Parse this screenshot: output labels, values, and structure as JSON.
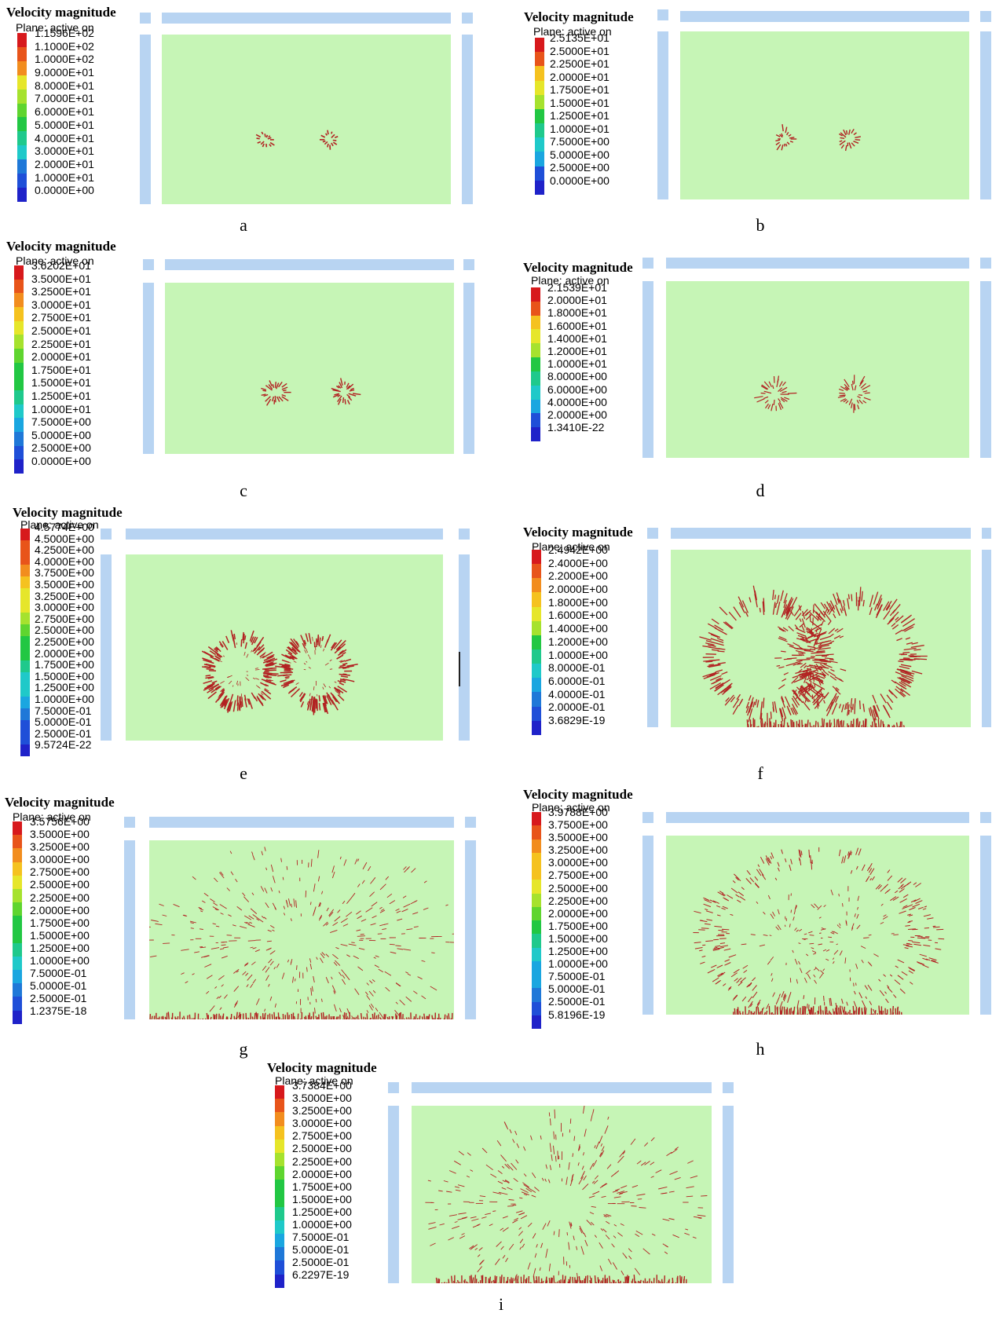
{
  "colors": {
    "colormap": [
      "#d7191c",
      "#e8541a",
      "#f28d1e",
      "#f5c21f",
      "#e6e62a",
      "#a6e22e",
      "#5fd52f",
      "#22c743",
      "#1fc98c",
      "#1fc9c9",
      "#1aa6e0",
      "#1f78d8",
      "#1f4fd8",
      "#1f22c9"
    ],
    "plate": "#b8d4f2",
    "field": "#c6f5b6",
    "vector": "#b22222"
  },
  "panels": [
    {
      "id": "a",
      "title": "Velocity magnitude",
      "subtitle": "Plane: active on",
      "letter": "a",
      "ticks": [
        "1.1596E+02",
        "1.1000E+02",
        "1.0000E+02",
        "9.0000E+01",
        "8.0000E+01",
        "7.0000E+01",
        "6.0000E+01",
        "5.0000E+01",
        "4.0000E+01",
        "3.0000E+01",
        "2.0000E+01",
        "1.0000E+01",
        "0.0000E+00"
      ]
    },
    {
      "id": "b",
      "title": "Velocity magnitude",
      "subtitle": "Plane: active on",
      "letter": "b",
      "ticks": [
        "2.5135E+01",
        "2.5000E+01",
        "2.2500E+01",
        "2.0000E+01",
        "1.7500E+01",
        "1.5000E+01",
        "1.2500E+01",
        "1.0000E+01",
        "7.5000E+00",
        "5.0000E+00",
        "2.5000E+00",
        "0.0000E+00"
      ]
    },
    {
      "id": "c",
      "title": "Velocity magnitude",
      "subtitle": "Plane: active on",
      "letter": "c",
      "ticks": [
        "3.6202E+01",
        "3.5000E+01",
        "3.2500E+01",
        "3.0000E+01",
        "2.7500E+01",
        "2.5000E+01",
        "2.2500E+01",
        "2.0000E+01",
        "1.7500E+01",
        "1.5000E+01",
        "1.2500E+01",
        "1.0000E+01",
        "7.5000E+00",
        "5.0000E+00",
        "2.5000E+00",
        "0.0000E+00"
      ]
    },
    {
      "id": "d",
      "title": "Velocity magnitude",
      "subtitle": "Plane: active on",
      "letter": "d",
      "ticks": [
        "2.1539E+01",
        "2.0000E+01",
        "1.8000E+01",
        "1.6000E+01",
        "1.4000E+01",
        "1.2000E+01",
        "1.0000E+01",
        "8.0000E+00",
        "6.0000E+00",
        "4.0000E+00",
        "2.0000E+00",
        "1.3410E-22"
      ]
    },
    {
      "id": "e",
      "title": "Velocity magnitude",
      "subtitle": "Plane: active on",
      "letter": "e",
      "ticks": [
        "4.5774E+00",
        "4.5000E+00",
        "4.2500E+00",
        "4.0000E+00",
        "3.7500E+00",
        "3.5000E+00",
        "3.2500E+00",
        "3.0000E+00",
        "2.7500E+00",
        "2.5000E+00",
        "2.2500E+00",
        "2.0000E+00",
        "1.7500E+00",
        "1.5000E+00",
        "1.2500E+00",
        "1.0000E+00",
        "7.5000E-01",
        "5.0000E-01",
        "2.5000E-01",
        "9.5724E-22"
      ]
    },
    {
      "id": "f",
      "title": "Velocity magnitude",
      "subtitle": "Plane: active on",
      "letter": "f",
      "ticks": [
        "2.4942E+00",
        "2.4000E+00",
        "2.2000E+00",
        "2.0000E+00",
        "1.8000E+00",
        "1.6000E+00",
        "1.4000E+00",
        "1.2000E+00",
        "1.0000E+00",
        "8.0000E-01",
        "6.0000E-01",
        "4.0000E-01",
        "2.0000E-01",
        "3.6829E-19"
      ]
    },
    {
      "id": "g",
      "title": "Velocity magnitude",
      "subtitle": "Plane: active on",
      "letter": "g",
      "ticks": [
        "3.5756E+00",
        "3.5000E+00",
        "3.2500E+00",
        "3.0000E+00",
        "2.7500E+00",
        "2.5000E+00",
        "2.2500E+00",
        "2.0000E+00",
        "1.7500E+00",
        "1.5000E+00",
        "1.2500E+00",
        "1.0000E+00",
        "7.5000E-01",
        "5.0000E-01",
        "2.5000E-01",
        "1.2375E-18"
      ]
    },
    {
      "id": "h",
      "title": "Velocity magnitude",
      "subtitle": "Plane: active on",
      "letter": "h",
      "ticks": [
        "3.9788E+00",
        "3.7500E+00",
        "3.5000E+00",
        "3.2500E+00",
        "3.0000E+00",
        "2.7500E+00",
        "2.5000E+00",
        "2.2500E+00",
        "2.0000E+00",
        "1.7500E+00",
        "1.5000E+00",
        "1.2500E+00",
        "1.0000E+00",
        "7.5000E-01",
        "5.0000E-01",
        "2.5000E-01",
        "5.8196E-19"
      ]
    },
    {
      "id": "i",
      "title": "Velocity magnitude",
      "subtitle": "Plane: active on",
      "letter": "i",
      "ticks": [
        "3.7384E+00",
        "3.5000E+00",
        "3.2500E+00",
        "3.0000E+00",
        "2.7500E+00",
        "2.5000E+00",
        "2.2500E+00",
        "2.0000E+00",
        "1.7500E+00",
        "1.5000E+00",
        "1.2500E+00",
        "1.0000E+00",
        "7.5000E-01",
        "5.0000E-01",
        "2.5000E-01",
        "6.2297E-19"
      ]
    }
  ]
}
